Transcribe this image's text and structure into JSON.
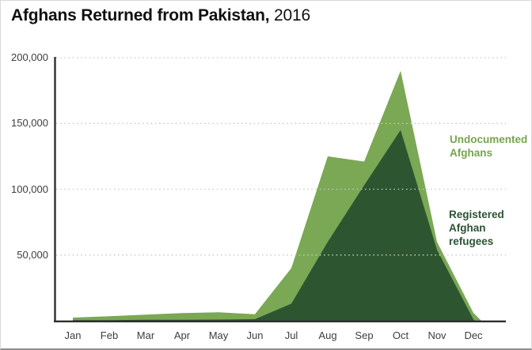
{
  "title": {
    "main": "Afghans Returned from Pakistan,",
    "year": "2016"
  },
  "legend": {
    "undocumented_label": "Undocumented Afghans",
    "registered_label": "Registered Afghan refugees"
  },
  "colors": {
    "undocumented_fill": "#7aa854",
    "registered_fill": "#2d5630",
    "undocumented_text": "#76a44e",
    "registered_text": "#2b5333",
    "axis_line": "#2f2f2f",
    "axis_text": "#3d3d3d",
    "gridline": "#c9c9c9",
    "title_text": "#111111",
    "background": "#ffffff"
  },
  "chart_data": {
    "type": "area",
    "stacked": true,
    "title": "Afghans Returned from Pakistan, 2016",
    "months": [
      "Jan",
      "Feb",
      "Mar",
      "Apr",
      "May",
      "Jun",
      "Jul",
      "Aug",
      "Sep",
      "Oct",
      "Nov",
      "Dec"
    ],
    "series": [
      {
        "name": "Registered Afghan refugees",
        "color": "#2d5630",
        "values": [
          400,
          500,
          700,
          800,
          900,
          1200,
          13000,
          60000,
          103000,
          145000,
          54000,
          1000
        ]
      },
      {
        "name": "Undocumented Afghans",
        "color": "#7aa854",
        "values": [
          2000,
          2900,
          3900,
          5000,
          5600,
          3800,
          27000,
          65000,
          18000,
          45000,
          6000,
          5000
        ]
      }
    ],
    "stacked_totals": [
      2400,
      3400,
      4600,
      5800,
      6500,
      5000,
      40000,
      125000,
      121000,
      190000,
      60000,
      6000
    ],
    "ylim": [
      0,
      200000
    ],
    "y_tick_values": [
      50000,
      100000,
      150000,
      200000
    ],
    "y_tick_labels": [
      "50,000",
      "100,000",
      "150,000",
      "200,000"
    ],
    "xlabel": "",
    "ylabel": "",
    "grid": "horizontal-dotted",
    "legend_position": "right-inside"
  }
}
